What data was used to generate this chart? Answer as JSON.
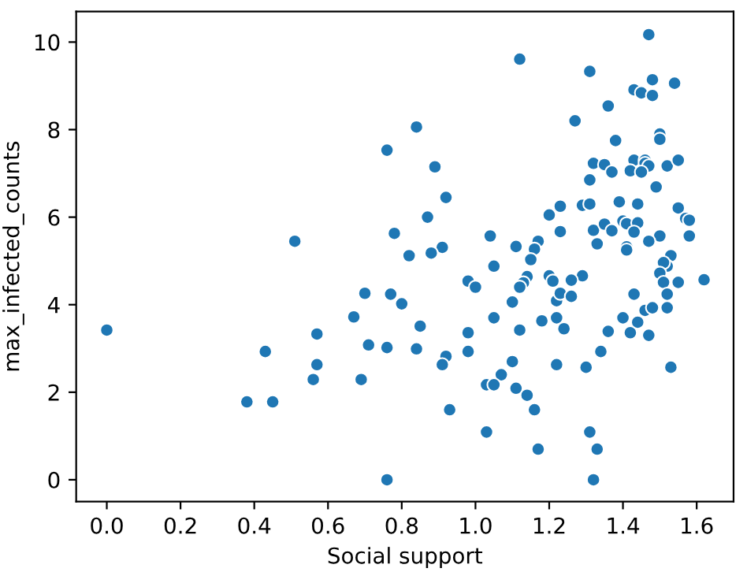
{
  "chart_data": {
    "type": "scatter",
    "xlabel": "Social support",
    "ylabel": "max_infected_counts",
    "xlim": [
      -0.083,
      1.7
    ],
    "ylim": [
      -0.5,
      10.7
    ],
    "xticks": [
      {
        "value": 0,
        "label": "0.0"
      },
      0.2,
      0.4,
      0.6,
      0.8,
      {
        "value": 1,
        "label": "1.0"
      },
      1.2,
      1.4,
      1.6
    ],
    "yticks": [
      0,
      2,
      4,
      6,
      8,
      10
    ],
    "grid": false,
    "marker": "circle",
    "series": [
      {
        "color": "#1f77b4",
        "x": [
          0.76,
          0.78,
          0.51,
          0.82,
          1.47,
          1.12,
          1.31,
          1.48,
          1.54,
          1.43,
          1.45,
          1.48,
          1.36,
          0.84,
          1.27,
          1.5,
          1.5,
          1.38,
          0.89,
          1.32,
          1.35,
          1.37,
          1.43,
          1.46,
          1.46,
          1.47,
          1.42,
          1.45,
          1.52,
          1.55,
          1.31,
          1.49,
          0.92,
          0.87,
          1.29,
          1.31,
          1.23,
          1.2,
          1.39,
          1.44,
          1.55,
          1.57,
          1.58,
          1.58,
          1.23,
          1.32,
          1.35,
          1.37,
          1.4,
          1.41,
          1.44,
          1.43,
          1.5,
          1.47,
          1.33,
          1.41,
          1.41,
          1.04,
          1.11,
          1.17,
          1.16,
          1.15,
          1.05,
          0.91,
          0.88,
          1.53,
          1.52,
          1.51,
          1.5,
          0.98,
          1.14,
          1.2,
          1.29,
          1.26,
          1.21,
          1.13,
          1.62,
          1.55,
          1.51,
          1.0,
          1.12,
          1.1,
          1.22,
          1.23,
          1.26,
          1.05,
          1.12,
          1.18,
          1.22,
          1.24,
          0.85,
          0.98,
          0.84,
          0.98,
          0.92,
          0.91,
          1.1,
          1.07,
          1.03,
          1.05,
          1.11,
          1.14,
          1.16,
          0.93,
          1.03,
          1.17,
          1.31,
          1.33,
          1.32,
          1.22,
          1.3,
          1.34,
          1.36,
          1.4,
          1.42,
          1.44,
          1.43,
          1.46,
          1.48,
          1.47,
          1.52,
          1.52,
          1.53,
          0.0,
          0.7,
          0.77,
          0.8,
          0.67,
          0.57,
          0.71,
          0.76,
          0.43,
          0.57,
          0.56,
          0.69,
          0.38,
          0.45,
          0.76
        ],
        "values": [
          7.53,
          5.63,
          5.45,
          5.12,
          10.17,
          9.61,
          9.33,
          9.14,
          9.06,
          8.91,
          8.84,
          8.78,
          8.54,
          8.06,
          8.2,
          7.9,
          7.78,
          7.75,
          7.15,
          7.23,
          7.2,
          7.03,
          7.3,
          7.3,
          7.23,
          7.17,
          7.06,
          7.03,
          7.17,
          7.3,
          6.85,
          6.69,
          6.45,
          6.0,
          6.27,
          6.3,
          6.25,
          6.05,
          6.35,
          6.3,
          6.21,
          5.97,
          5.93,
          5.57,
          5.67,
          5.7,
          5.84,
          5.69,
          5.91,
          5.85,
          5.87,
          5.66,
          5.57,
          5.45,
          5.39,
          5.32,
          5.25,
          5.57,
          5.33,
          5.45,
          5.27,
          5.03,
          4.88,
          5.31,
          5.18,
          5.12,
          4.88,
          4.96,
          4.72,
          4.54,
          4.64,
          4.66,
          4.66,
          4.56,
          4.54,
          4.5,
          4.57,
          4.51,
          4.51,
          4.4,
          4.4,
          4.06,
          4.09,
          4.26,
          4.19,
          3.7,
          3.42,
          3.63,
          3.7,
          3.45,
          3.51,
          3.36,
          2.99,
          2.93,
          2.82,
          2.63,
          2.7,
          2.4,
          2.17,
          2.17,
          2.09,
          1.93,
          1.6,
          1.6,
          1.09,
          0.7,
          1.09,
          0.7,
          0.0,
          2.63,
          2.57,
          2.93,
          3.39,
          3.7,
          3.36,
          3.6,
          4.24,
          3.87,
          3.93,
          3.3,
          3.93,
          4.24,
          2.57,
          3.42,
          4.26,
          4.24,
          4.02,
          3.72,
          3.33,
          3.08,
          3.02,
          2.93,
          2.63,
          2.29,
          2.29,
          1.78,
          1.78,
          0.0
        ]
      }
    ]
  }
}
